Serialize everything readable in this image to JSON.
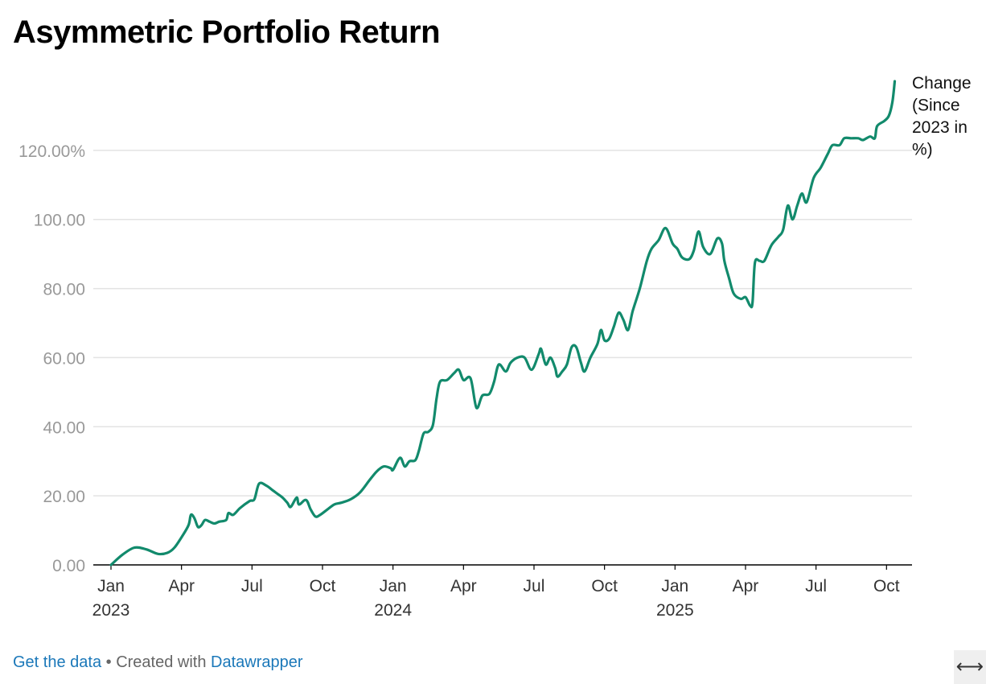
{
  "title": "Asymmetric Portfolio Return",
  "footer": {
    "get_data": "Get the data",
    "separator": " • Created with ",
    "tool": "Datawrapper"
  },
  "icons": {
    "expand": "expand-arrows-icon"
  },
  "colors": {
    "line": "#128a6c",
    "grid": "#e3e3e3",
    "axis_text": "#999999",
    "baseline": "#000000"
  },
  "chart_data": {
    "type": "line",
    "title": "Asymmetric Portfolio Return",
    "xlabel": "",
    "ylabel": "",
    "ylim": [
      0,
      140
    ],
    "xlim": [
      0,
      33.4
    ],
    "x_unit": "months since Jan 2023",
    "yticks": [
      {
        "value": 0,
        "label": "0.00"
      },
      {
        "value": 20,
        "label": "20.00"
      },
      {
        "value": 40,
        "label": "40.00"
      },
      {
        "value": 60,
        "label": "60.00"
      },
      {
        "value": 80,
        "label": "80.00"
      },
      {
        "value": 100,
        "label": "100.00"
      },
      {
        "value": 120,
        "label": "120.00%"
      }
    ],
    "xticks": [
      {
        "value": 0,
        "label": "Jan",
        "year": "2023"
      },
      {
        "value": 3,
        "label": "Apr",
        "year": ""
      },
      {
        "value": 6,
        "label": "Jul",
        "year": ""
      },
      {
        "value": 9,
        "label": "Oct",
        "year": ""
      },
      {
        "value": 12,
        "label": "Jan",
        "year": "2024"
      },
      {
        "value": 15,
        "label": "Apr",
        "year": ""
      },
      {
        "value": 18,
        "label": "Jul",
        "year": ""
      },
      {
        "value": 21,
        "label": "Oct",
        "year": ""
      },
      {
        "value": 24,
        "label": "Jan",
        "year": "2025"
      },
      {
        "value": 27,
        "label": "Apr",
        "year": ""
      },
      {
        "value": 30,
        "label": "Jul",
        "year": ""
      },
      {
        "value": 33,
        "label": "Oct",
        "year": ""
      }
    ],
    "series": [
      {
        "name": "Change (Since 2023 in %)",
        "label_lines": [
          "Change",
          "(Since",
          "2023 in",
          "%)"
        ],
        "points": [
          [
            0.0,
            0
          ],
          [
            0.5,
            3
          ],
          [
            1.0,
            5
          ],
          [
            1.5,
            4.5
          ],
          [
            2.0,
            3.2
          ],
          [
            2.4,
            3.5
          ],
          [
            2.7,
            5
          ],
          [
            3.0,
            8
          ],
          [
            3.3,
            11.5
          ],
          [
            3.4,
            14.5
          ],
          [
            3.55,
            13.5
          ],
          [
            3.7,
            11
          ],
          [
            3.85,
            11.5
          ],
          [
            4.0,
            13
          ],
          [
            4.2,
            12.5
          ],
          [
            4.4,
            12
          ],
          [
            4.6,
            12.5
          ],
          [
            4.9,
            13
          ],
          [
            5.0,
            15
          ],
          [
            5.2,
            14.5
          ],
          [
            5.5,
            16.5
          ],
          [
            5.9,
            18.5
          ],
          [
            6.1,
            19
          ],
          [
            6.3,
            23.5
          ],
          [
            6.6,
            23
          ],
          [
            6.9,
            21.5
          ],
          [
            7.1,
            20.5
          ],
          [
            7.3,
            19.5
          ],
          [
            7.5,
            18
          ],
          [
            7.65,
            16.8
          ],
          [
            7.9,
            19.5
          ],
          [
            8.0,
            17.5
          ],
          [
            8.3,
            18.8
          ],
          [
            8.5,
            16
          ],
          [
            8.7,
            14
          ],
          [
            8.9,
            14.5
          ],
          [
            9.2,
            16
          ],
          [
            9.5,
            17.5
          ],
          [
            9.8,
            18
          ],
          [
            10.2,
            19
          ],
          [
            10.6,
            21
          ],
          [
            11.0,
            24.5
          ],
          [
            11.3,
            27
          ],
          [
            11.6,
            28.5
          ],
          [
            11.9,
            28
          ],
          [
            12.0,
            27.5
          ],
          [
            12.3,
            31
          ],
          [
            12.5,
            28.5
          ],
          [
            12.7,
            30
          ],
          [
            12.95,
            30.3
          ],
          [
            13.1,
            33
          ],
          [
            13.3,
            38
          ],
          [
            13.5,
            38.5
          ],
          [
            13.7,
            40.5
          ],
          [
            13.85,
            48
          ],
          [
            14.0,
            53
          ],
          [
            14.3,
            53.5
          ],
          [
            14.6,
            55.5
          ],
          [
            14.8,
            56.5
          ],
          [
            15.0,
            53.5
          ],
          [
            15.3,
            54
          ],
          [
            15.55,
            45.5
          ],
          [
            15.8,
            49
          ],
          [
            16.1,
            49.5
          ],
          [
            16.3,
            53
          ],
          [
            16.5,
            58
          ],
          [
            16.8,
            56
          ],
          [
            17.0,
            58.5
          ],
          [
            17.3,
            60
          ],
          [
            17.6,
            60
          ],
          [
            17.9,
            56.5
          ],
          [
            18.2,
            61
          ],
          [
            18.3,
            62.5
          ],
          [
            18.5,
            58
          ],
          [
            18.7,
            60
          ],
          [
            18.9,
            57
          ],
          [
            19.0,
            54.5
          ],
          [
            19.2,
            56
          ],
          [
            19.4,
            58
          ],
          [
            19.6,
            63
          ],
          [
            19.8,
            63
          ],
          [
            20.0,
            58.5
          ],
          [
            20.15,
            56
          ],
          [
            20.4,
            60
          ],
          [
            20.7,
            64
          ],
          [
            20.85,
            68
          ],
          [
            21.0,
            65
          ],
          [
            21.2,
            65.5
          ],
          [
            21.4,
            69
          ],
          [
            21.6,
            73
          ],
          [
            21.8,
            71
          ],
          [
            22.0,
            68
          ],
          [
            22.2,
            73.5
          ],
          [
            22.5,
            80
          ],
          [
            22.8,
            88
          ],
          [
            23.0,
            91.5
          ],
          [
            23.3,
            94
          ],
          [
            23.6,
            97.5
          ],
          [
            23.9,
            93
          ],
          [
            24.1,
            91.5
          ],
          [
            24.3,
            89
          ],
          [
            24.6,
            88.5
          ],
          [
            24.8,
            91
          ],
          [
            25.0,
            96.5
          ],
          [
            25.2,
            92
          ],
          [
            25.5,
            90
          ],
          [
            25.8,
            94.5
          ],
          [
            26.0,
            93
          ],
          [
            26.1,
            88
          ],
          [
            26.3,
            83
          ],
          [
            26.5,
            78.5
          ],
          [
            26.8,
            77
          ],
          [
            27.0,
            77.5
          ],
          [
            27.2,
            75
          ],
          [
            27.3,
            76
          ],
          [
            27.4,
            87.5
          ],
          [
            27.6,
            88
          ],
          [
            27.8,
            88
          ],
          [
            28.1,
            92.5
          ],
          [
            28.4,
            95
          ],
          [
            28.6,
            97
          ],
          [
            28.8,
            104
          ],
          [
            29.0,
            100
          ],
          [
            29.2,
            104
          ],
          [
            29.4,
            107.5
          ],
          [
            29.6,
            105
          ],
          [
            29.9,
            112
          ],
          [
            30.2,
            115
          ],
          [
            30.5,
            119
          ],
          [
            30.7,
            121.5
          ],
          [
            31.0,
            121.5
          ],
          [
            31.2,
            123.5
          ],
          [
            31.5,
            123.5
          ],
          [
            31.8,
            123.5
          ],
          [
            32.0,
            123
          ],
          [
            32.3,
            124
          ],
          [
            32.5,
            123.5
          ],
          [
            32.6,
            127
          ],
          [
            32.9,
            128.5
          ],
          [
            33.1,
            130
          ],
          [
            33.25,
            134
          ],
          [
            33.35,
            140
          ]
        ]
      }
    ]
  }
}
